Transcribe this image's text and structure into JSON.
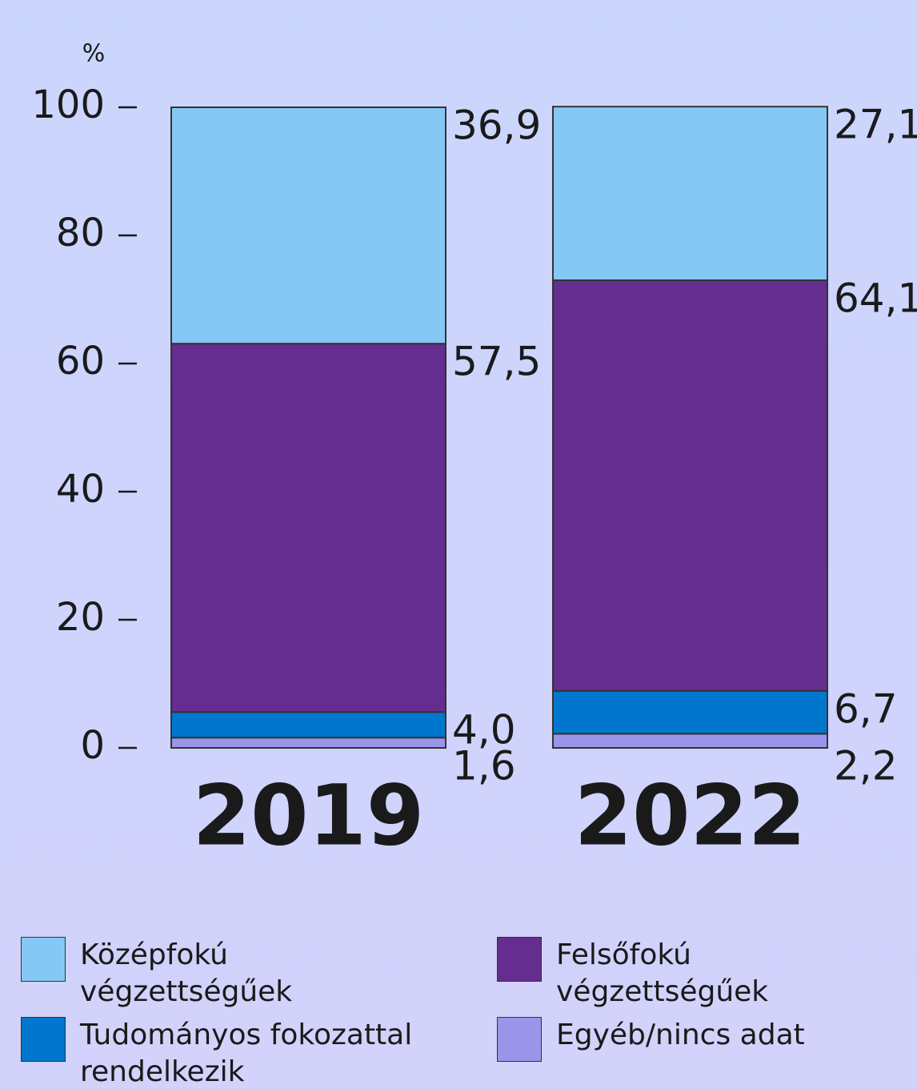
{
  "chart_data": {
    "type": "stacked_bar",
    "y_label": "%",
    "categories": [
      "2019",
      "2022"
    ],
    "ylim": [
      0,
      100
    ],
    "yticks": [
      0,
      20,
      40,
      60,
      80,
      100
    ],
    "series": [
      {
        "name": "Középfokú végzettségűek",
        "color": "#85c8f5",
        "values": [
          36.9,
          27.1
        ],
        "value_labels": [
          "36,9",
          "27,1"
        ]
      },
      {
        "name": "Felsőfokú végzettségűek",
        "color": "#652d8f",
        "values": [
          57.5,
          64.1
        ],
        "value_labels": [
          "57,5",
          "64,1"
        ]
      },
      {
        "name": "Tudományos fokozattal rendelkezik",
        "color": "#0077cc",
        "values": [
          4.0,
          6.7
        ],
        "value_labels": [
          "4,0",
          "6,7"
        ]
      },
      {
        "name": "Egyéb/nincs adat",
        "color": "#9b95ea",
        "values": [
          1.6,
          2.2
        ],
        "value_labels": [
          "1,6",
          "2,2"
        ]
      }
    ]
  }
}
